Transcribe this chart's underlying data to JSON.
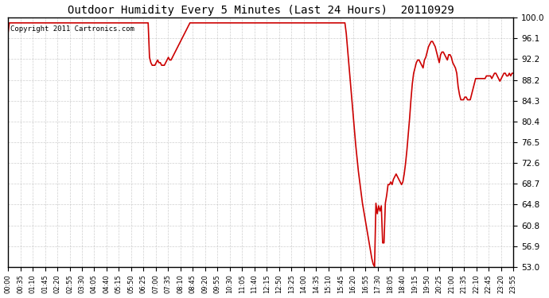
{
  "title": "Outdoor Humidity Every 5 Minutes (Last 24 Hours)  20110929",
  "copyright_text": "Copyright 2011 Cartronics.com",
  "line_color": "#cc0000",
  "bg_color": "#ffffff",
  "plot_bg_color": "#ffffff",
  "grid_color": "#b0b0b0",
  "yticks": [
    53.0,
    56.9,
    60.8,
    64.8,
    68.7,
    72.6,
    76.5,
    80.4,
    84.3,
    88.2,
    92.2,
    96.1,
    100.0
  ],
  "ylim": [
    53.0,
    100.0
  ],
  "xtick_labels": [
    "00:00",
    "00:35",
    "01:10",
    "01:45",
    "02:20",
    "02:55",
    "03:30",
    "04:05",
    "04:40",
    "05:15",
    "05:50",
    "06:25",
    "07:00",
    "07:35",
    "08:10",
    "08:45",
    "09:20",
    "09:55",
    "10:30",
    "11:05",
    "11:40",
    "12:15",
    "12:50",
    "13:25",
    "14:00",
    "14:35",
    "15:10",
    "15:45",
    "16:20",
    "16:55",
    "17:30",
    "18:05",
    "18:40",
    "19:15",
    "19:50",
    "20:25",
    "21:00",
    "21:35",
    "22:10",
    "22:45",
    "23:20",
    "23:55"
  ],
  "humidity_data": [
    [
      0,
      97.0
    ],
    [
      5,
      99.0
    ],
    [
      10,
      99.0
    ],
    [
      20,
      99.0
    ],
    [
      40,
      99.0
    ],
    [
      60,
      99.0
    ],
    [
      80,
      99.0
    ],
    [
      100,
      99.0
    ],
    [
      120,
      99.0
    ],
    [
      140,
      99.0
    ],
    [
      160,
      99.0
    ],
    [
      180,
      99.0
    ],
    [
      200,
      99.0
    ],
    [
      220,
      99.0
    ],
    [
      240,
      99.0
    ],
    [
      260,
      99.0
    ],
    [
      280,
      99.0
    ],
    [
      300,
      99.0
    ],
    [
      320,
      99.0
    ],
    [
      340,
      99.0
    ],
    [
      360,
      99.0
    ],
    [
      380,
      99.0
    ],
    [
      400,
      99.0
    ],
    [
      420,
      99.0
    ],
    [
      440,
      99.0
    ],
    [
      460,
      99.0
    ],
    [
      480,
      99.0
    ],
    [
      500,
      99.0
    ],
    [
      510,
      99.0
    ],
    [
      515,
      99.0
    ],
    [
      520,
      99.0
    ],
    [
      525,
      92.5
    ],
    [
      530,
      91.5
    ],
    [
      535,
      91.0
    ],
    [
      540,
      91.0
    ],
    [
      545,
      91.0
    ],
    [
      550,
      91.5
    ],
    [
      555,
      92.0
    ],
    [
      560,
      91.5
    ],
    [
      565,
      91.5
    ],
    [
      570,
      91.0
    ],
    [
      575,
      91.0
    ],
    [
      580,
      91.0
    ],
    [
      585,
      91.5
    ],
    [
      590,
      92.0
    ],
    [
      595,
      92.5
    ],
    [
      600,
      92.0
    ],
    [
      605,
      92.0
    ],
    [
      610,
      92.5
    ],
    [
      615,
      93.0
    ],
    [
      620,
      93.5
    ],
    [
      625,
      94.0
    ],
    [
      630,
      94.5
    ],
    [
      635,
      95.0
    ],
    [
      640,
      95.5
    ],
    [
      645,
      96.0
    ],
    [
      650,
      96.5
    ],
    [
      655,
      97.0
    ],
    [
      660,
      97.5
    ],
    [
      665,
      98.0
    ],
    [
      670,
      98.5
    ],
    [
      675,
      99.0
    ],
    [
      680,
      99.0
    ],
    [
      685,
      99.0
    ],
    [
      690,
      99.0
    ],
    [
      695,
      99.0
    ],
    [
      700,
      99.0
    ],
    [
      705,
      99.0
    ],
    [
      710,
      99.0
    ],
    [
      715,
      99.0
    ],
    [
      720,
      99.0
    ],
    [
      725,
      99.0
    ],
    [
      730,
      99.0
    ],
    [
      735,
      99.0
    ],
    [
      740,
      99.0
    ],
    [
      745,
      99.0
    ],
    [
      750,
      99.0
    ],
    [
      755,
      99.0
    ],
    [
      760,
      99.0
    ],
    [
      765,
      99.0
    ],
    [
      770,
      99.0
    ],
    [
      775,
      99.0
    ],
    [
      780,
      99.0
    ],
    [
      785,
      99.0
    ],
    [
      790,
      99.0
    ],
    [
      795,
      99.0
    ],
    [
      800,
      99.0
    ],
    [
      805,
      99.0
    ],
    [
      810,
      99.0
    ],
    [
      815,
      99.0
    ],
    [
      820,
      99.0
    ],
    [
      825,
      99.0
    ],
    [
      830,
      99.0
    ],
    [
      835,
      99.0
    ],
    [
      840,
      99.0
    ],
    [
      845,
      99.0
    ],
    [
      850,
      99.0
    ],
    [
      855,
      99.0
    ],
    [
      860,
      99.0
    ],
    [
      865,
      99.0
    ],
    [
      870,
      99.0
    ],
    [
      875,
      99.0
    ],
    [
      880,
      99.0
    ],
    [
      885,
      99.0
    ],
    [
      890,
      99.0
    ],
    [
      895,
      99.0
    ],
    [
      900,
      99.0
    ],
    [
      905,
      99.0
    ],
    [
      910,
      99.0
    ],
    [
      915,
      99.0
    ],
    [
      920,
      99.0
    ],
    [
      925,
      99.0
    ],
    [
      930,
      99.0
    ],
    [
      935,
      99.0
    ],
    [
      940,
      99.0
    ],
    [
      945,
      99.0
    ],
    [
      950,
      99.0
    ],
    [
      955,
      99.0
    ],
    [
      960,
      99.0
    ],
    [
      965,
      99.0
    ],
    [
      970,
      99.0
    ],
    [
      975,
      99.0
    ],
    [
      980,
      99.0
    ],
    [
      985,
      99.0
    ],
    [
      990,
      99.0
    ],
    [
      995,
      99.0
    ],
    [
      1000,
      99.0
    ],
    [
      1005,
      99.0
    ],
    [
      1010,
      99.0
    ],
    [
      1015,
      99.0
    ],
    [
      1020,
      99.0
    ],
    [
      1025,
      99.0
    ],
    [
      1030,
      99.0
    ],
    [
      1035,
      99.0
    ],
    [
      1040,
      99.0
    ],
    [
      1045,
      99.0
    ],
    [
      1050,
      99.0
    ],
    [
      1055,
      99.0
    ],
    [
      1060,
      99.0
    ],
    [
      1065,
      99.0
    ],
    [
      1070,
      99.0
    ],
    [
      1075,
      99.0
    ],
    [
      1080,
      99.0
    ],
    [
      1085,
      99.0
    ],
    [
      1090,
      99.0
    ],
    [
      1095,
      99.0
    ],
    [
      1100,
      99.0
    ],
    [
      1105,
      99.0
    ],
    [
      1110,
      99.0
    ],
    [
      1115,
      99.0
    ],
    [
      1120,
      99.0
    ],
    [
      1125,
      99.0
    ],
    [
      1130,
      99.0
    ],
    [
      1135,
      99.0
    ],
    [
      1140,
      99.0
    ],
    [
      1145,
      99.0
    ],
    [
      1150,
      99.0
    ],
    [
      1155,
      99.0
    ],
    [
      1160,
      99.0
    ],
    [
      1165,
      99.0
    ],
    [
      1170,
      99.0
    ],
    [
      1175,
      99.0
    ],
    [
      1180,
      99.0
    ],
    [
      1185,
      99.0
    ],
    [
      1190,
      99.0
    ],
    [
      1195,
      99.0
    ],
    [
      1200,
      99.0
    ],
    [
      1210,
      99.0
    ],
    [
      1215,
      99.0
    ],
    [
      1220,
      99.0
    ],
    [
      1225,
      99.0
    ],
    [
      1230,
      99.0
    ],
    [
      1235,
      99.0
    ],
    [
      1240,
      99.0
    ],
    [
      1245,
      99.0
    ],
    [
      1250,
      99.0
    ],
    [
      1255,
      97.0
    ],
    [
      1260,
      94.0
    ],
    [
      1265,
      91.0
    ],
    [
      1270,
      88.0
    ],
    [
      1275,
      85.0
    ],
    [
      1280,
      82.0
    ],
    [
      1285,
      79.0
    ],
    [
      1290,
      76.0
    ],
    [
      1295,
      73.5
    ],
    [
      1300,
      71.0
    ],
    [
      1305,
      69.0
    ],
    [
      1310,
      67.0
    ],
    [
      1315,
      65.0
    ],
    [
      1320,
      63.5
    ],
    [
      1325,
      62.0
    ],
    [
      1330,
      60.5
    ],
    [
      1335,
      59.0
    ],
    [
      1340,
      57.5
    ],
    [
      1345,
      56.0
    ],
    [
      1350,
      54.5
    ],
    [
      1355,
      53.5
    ],
    [
      1360,
      53.0
    ],
    [
      1365,
      65.0
    ],
    [
      1370,
      63.0
    ],
    [
      1375,
      64.5
    ],
    [
      1380,
      63.5
    ],
    [
      1385,
      64.5
    ],
    [
      1390,
      57.5
    ],
    [
      1395,
      57.5
    ],
    [
      1400,
      65.0
    ],
    [
      1405,
      66.5
    ],
    [
      1410,
      68.5
    ],
    [
      1415,
      68.5
    ],
    [
      1420,
      69.0
    ],
    [
      1425,
      68.5
    ],
    [
      1430,
      69.5
    ],
    [
      1435,
      70.0
    ],
    [
      1440,
      70.5
    ],
    [
      1445,
      70.0
    ],
    [
      1450,
      69.5
    ],
    [
      1455,
      69.0
    ],
    [
      1460,
      68.5
    ],
    [
      1465,
      69.0
    ],
    [
      1470,
      70.5
    ],
    [
      1475,
      72.5
    ],
    [
      1480,
      75.0
    ],
    [
      1485,
      78.0
    ],
    [
      1490,
      81.0
    ],
    [
      1495,
      84.5
    ],
    [
      1500,
      87.5
    ],
    [
      1505,
      89.5
    ],
    [
      1510,
      90.5
    ],
    [
      1515,
      91.5
    ],
    [
      1520,
      92.0
    ],
    [
      1525,
      92.0
    ],
    [
      1530,
      91.5
    ],
    [
      1535,
      91.0
    ],
    [
      1540,
      90.5
    ],
    [
      1545,
      92.0
    ],
    [
      1550,
      92.5
    ],
    [
      1555,
      93.5
    ],
    [
      1560,
      94.5
    ],
    [
      1565,
      95.0
    ],
    [
      1570,
      95.5
    ],
    [
      1575,
      95.5
    ],
    [
      1580,
      95.0
    ],
    [
      1585,
      94.5
    ],
    [
      1590,
      93.5
    ],
    [
      1595,
      92.5
    ],
    [
      1600,
      91.5
    ],
    [
      1605,
      93.0
    ],
    [
      1610,
      93.5
    ],
    [
      1615,
      93.5
    ],
    [
      1620,
      93.0
    ],
    [
      1625,
      92.5
    ],
    [
      1630,
      92.0
    ],
    [
      1635,
      93.0
    ],
    [
      1640,
      93.0
    ],
    [
      1645,
      92.5
    ],
    [
      1650,
      91.5
    ],
    [
      1655,
      91.0
    ],
    [
      1660,
      90.5
    ],
    [
      1665,
      89.5
    ],
    [
      1670,
      87.0
    ],
    [
      1675,
      85.5
    ],
    [
      1680,
      84.5
    ],
    [
      1685,
      84.5
    ],
    [
      1690,
      84.5
    ],
    [
      1695,
      85.0
    ],
    [
      1700,
      85.0
    ],
    [
      1705,
      84.5
    ],
    [
      1710,
      84.5
    ],
    [
      1715,
      84.5
    ],
    [
      1720,
      85.5
    ],
    [
      1725,
      86.5
    ],
    [
      1730,
      87.5
    ],
    [
      1735,
      88.5
    ],
    [
      1740,
      88.5
    ],
    [
      1745,
      88.5
    ],
    [
      1750,
      88.5
    ],
    [
      1755,
      88.5
    ],
    [
      1760,
      88.5
    ],
    [
      1765,
      88.5
    ],
    [
      1770,
      88.5
    ],
    [
      1775,
      89.0
    ],
    [
      1780,
      89.0
    ],
    [
      1785,
      89.0
    ],
    [
      1790,
      89.0
    ],
    [
      1795,
      88.5
    ],
    [
      1800,
      89.0
    ],
    [
      1805,
      89.5
    ],
    [
      1810,
      89.5
    ],
    [
      1815,
      89.0
    ],
    [
      1820,
      88.5
    ],
    [
      1825,
      88.0
    ],
    [
      1830,
      88.5
    ],
    [
      1835,
      89.0
    ],
    [
      1840,
      89.5
    ],
    [
      1845,
      89.5
    ],
    [
      1850,
      89.0
    ],
    [
      1855,
      89.0
    ],
    [
      1860,
      89.5
    ],
    [
      1865,
      89.0
    ],
    [
      1870,
      89.5
    ],
    [
      1875,
      89.5
    ]
  ]
}
